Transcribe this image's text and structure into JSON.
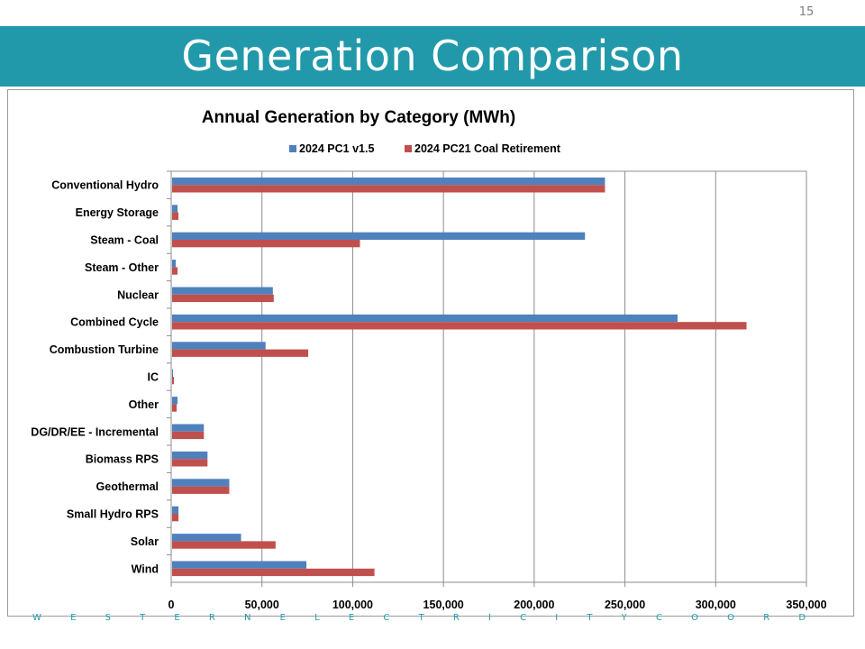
{
  "slide": {
    "page_number": "15",
    "title": "Generation Comparison",
    "footer": "W E S T E R N   E L E C T R I C I T Y   C O O R D I N A T I N G   C O U N C I L"
  },
  "colors": {
    "title_band": "#2199aa",
    "series_1": "#4f81bd",
    "series_2": "#c0504d"
  },
  "chart_data": {
    "type": "bar",
    "orientation": "horizontal",
    "title": "Annual Generation by Category (MWh)",
    "legend_position": "top",
    "grid": true,
    "categories": [
      "Conventional Hydro",
      "Energy Storage",
      "Steam - Coal",
      "Steam - Other",
      "Nuclear",
      "Combined Cycle",
      "Combustion Turbine",
      "IC",
      "Other",
      "DG/DR/EE - Incremental",
      "Biomass RPS",
      "Geothermal",
      "Small Hydro RPS",
      "Solar",
      "Wind"
    ],
    "series": [
      {
        "name": "2024 PC1 v1.5",
        "color": "#4f81bd",
        "values": [
          239000,
          3500,
          228000,
          2500,
          56000,
          279000,
          52000,
          1000,
          3500,
          18000,
          20000,
          32000,
          4000,
          38500,
          74500
        ]
      },
      {
        "name": "2024 PC21 Coal Retirement",
        "color": "#c0504d",
        "values": [
          239000,
          4000,
          104000,
          3500,
          56500,
          317000,
          75500,
          1500,
          3000,
          18000,
          20000,
          32000,
          4000,
          57500,
          112000
        ]
      }
    ],
    "xlim": [
      0,
      350000
    ],
    "xticks": [
      0,
      50000,
      100000,
      150000,
      200000,
      250000,
      300000,
      350000
    ],
    "xtick_labels": [
      "0",
      "50,000",
      "100,000",
      "150,000",
      "200,000",
      "250,000",
      "300,000",
      "350,000"
    ]
  }
}
